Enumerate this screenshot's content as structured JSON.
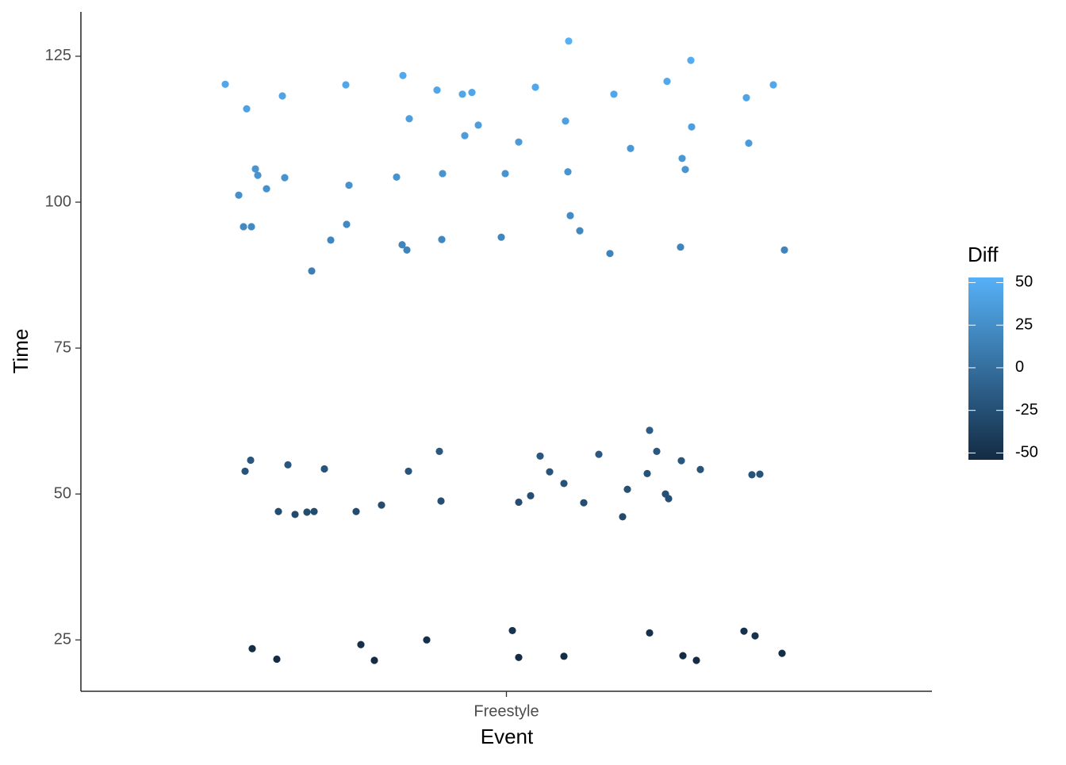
{
  "chart_data": {
    "type": "strip",
    "x_label": "Event",
    "y_label": "Time",
    "categories": [
      "Freestyle"
    ],
    "values": [
      120.2,
      116.0,
      118.2,
      120.1,
      121.7,
      119.2,
      118.5,
      118.8,
      127.6,
      119.7,
      118.5,
      120.7,
      124.3,
      117.9,
      120.1,
      114.3,
      111.4,
      113.2,
      113.9,
      112.9,
      110.3,
      109.2,
      110.1,
      101.2,
      105.7,
      104.6,
      102.3,
      104.2,
      102.9,
      104.3,
      104.9,
      104.9,
      105.2,
      107.5,
      105.6,
      95.8,
      95.8,
      96.2,
      93.5,
      88.2,
      92.7,
      91.8,
      93.6,
      94.0,
      97.7,
      95.1,
      91.2,
      92.3,
      91.8,
      53.9,
      55.8,
      55.0,
      47.0,
      46.5,
      46.9,
      47.0,
      54.3,
      47.0,
      48.1,
      53.9,
      57.3,
      48.8,
      48.6,
      49.7,
      56.5,
      53.8,
      51.8,
      48.5,
      56.8,
      46.1,
      50.8,
      53.5,
      60.9,
      57.3,
      50.0,
      49.2,
      55.7,
      54.2,
      53.3,
      53.4,
      23.5,
      21.7,
      24.2,
      21.5,
      25.0,
      26.6,
      22.0,
      22.2,
      26.2,
      22.3,
      21.5,
      26.5,
      25.7,
      22.7
    ],
    "diff": [
      45,
      41,
      43,
      45,
      47,
      44,
      44,
      44,
      53,
      45,
      44,
      46,
      49,
      43,
      45,
      39,
      36,
      38,
      39,
      38,
      35,
      34,
      35,
      26,
      31,
      30,
      27,
      29,
      28,
      29,
      30,
      30,
      30,
      33,
      31,
      21,
      21,
      21,
      19,
      13,
      18,
      17,
      19,
      19,
      23,
      20,
      16,
      17,
      17,
      -21,
      -19,
      -20,
      -28,
      -29,
      -28,
      -28,
      -21,
      -28,
      -27,
      -21,
      -18,
      -26,
      -26,
      -25,
      -19,
      -21,
      -23,
      -27,
      -18,
      -29,
      -24,
      -22,
      -14,
      -18,
      -25,
      -26,
      -19,
      -21,
      -22,
      -22,
      -52,
      -53,
      -51,
      -54,
      -50,
      -48,
      -53,
      -53,
      -49,
      -53,
      -54,
      -49,
      -49,
      -52
    ],
    "ylim": [
      16.2,
      132.6
    ],
    "yticks": [
      25,
      50,
      75,
      100,
      125
    ],
    "color_label": "Diff",
    "colorlim": [
      -54,
      53
    ],
    "colorticks": [
      -50,
      -25,
      0,
      25,
      50
    ],
    "color_low": "#132b43",
    "color_high": "#56b1f7",
    "grid": false
  }
}
